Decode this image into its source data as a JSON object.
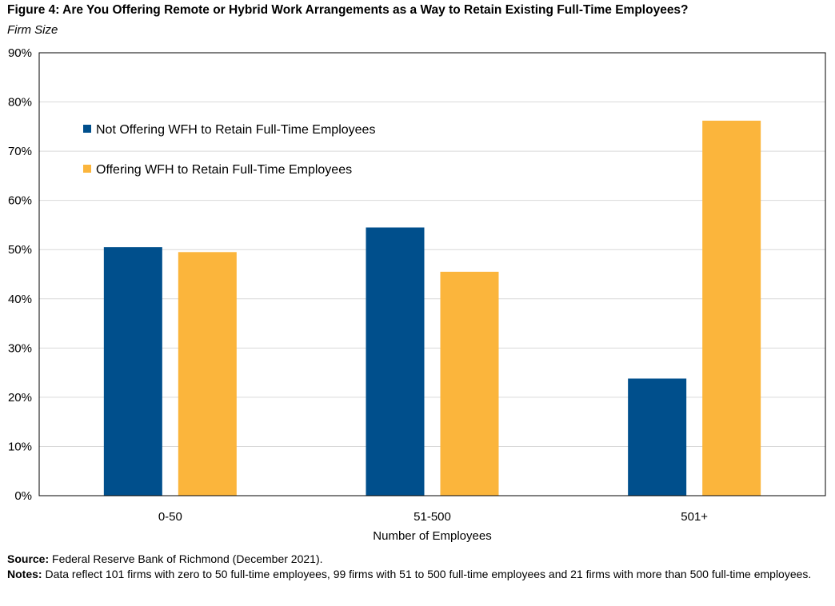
{
  "figure": {
    "title": "Figure 4: Are You Offering Remote or Hybrid Work Arrangements as a Way to Retain Existing Full-Time Employees?",
    "subtitle": "Firm Size"
  },
  "chart_data": {
    "type": "bar",
    "categories": [
      "0-50",
      "51-500",
      "501+"
    ],
    "series": [
      {
        "name": "Not Offering WFH to Retain Full-Time Employees",
        "values": [
          50.5,
          54.5,
          23.8
        ],
        "color": "#004F8C"
      },
      {
        "name": "Offering WFH to Retain Full-Time Employees",
        "values": [
          49.5,
          45.5,
          76.2
        ],
        "color": "#FBB53C"
      }
    ],
    "xlabel": "Number of Employees",
    "ylabel": "",
    "ylim": [
      0,
      90
    ],
    "yticks": [
      0,
      10,
      20,
      30,
      40,
      50,
      60,
      70,
      80,
      90
    ],
    "ytick_labels": [
      "0%",
      "10%",
      "20%",
      "30%",
      "40%",
      "50%",
      "60%",
      "70%",
      "80%",
      "90%"
    ],
    "grid": true,
    "legend_position": "top-left"
  },
  "footer": {
    "source_label": "Source:",
    "source_text": " Federal Reserve Bank of Richmond (December 2021).",
    "notes_label": "Notes:",
    "notes_text": " Data reflect 101 firms with zero to 50 full-time employees, 99 firms with 51 to 500 full-time employees and 21 firms with more than 500 full-time employees."
  }
}
